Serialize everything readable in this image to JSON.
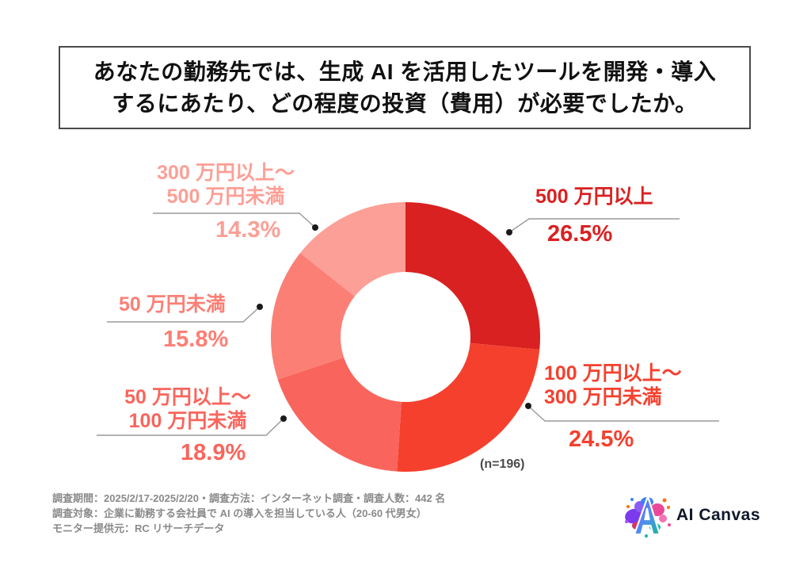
{
  "title": {
    "line1": "あなたの勤務先では、生成 AI を活用したツールを開発・導入",
    "line2": "するにあたり、どの程度の投資（費用）が必要でしたか。"
  },
  "chart_data": {
    "type": "pie",
    "subtype": "donut",
    "title": "生成AIツール開発・導入に必要だった投資（費用）",
    "sample_note": "(n=196)",
    "start_angle_deg": 0,
    "direction": "clockwise",
    "inner_radius_ratio": 0.48,
    "legend_position": "callout-labels",
    "segments": [
      {
        "label": "500 万円以上",
        "label_lines": [
          "500 万円以上"
        ],
        "value": 26.5,
        "percent_display": "26.5%",
        "color": "#D92121"
      },
      {
        "label": "100 万円以上〜300 万円未満",
        "label_lines": [
          "100 万円以上〜",
          "300 万円未満"
        ],
        "value": 24.5,
        "percent_display": "24.5%",
        "color": "#F5402E"
      },
      {
        "label": "50 万円以上〜100 万円未満",
        "label_lines": [
          "50 万円以上〜",
          "100 万円未満"
        ],
        "value": 18.9,
        "percent_display": "18.9%",
        "color": "#F9655C"
      },
      {
        "label": "50 万円未満",
        "label_lines": [
          "50 万円未満"
        ],
        "value": 15.8,
        "percent_display": "15.8%",
        "color": "#FC7F75"
      },
      {
        "label": "300 万円以上〜500 万円未満",
        "label_lines": [
          "300 万円以上〜",
          "500 万円未満"
        ],
        "value": 14.3,
        "percent_display": "14.3%",
        "color": "#FC9F96"
      }
    ]
  },
  "footer": {
    "lines": [
      "調査期間：2025/2/17-2025/2/20・調査方法：インターネット調査・調査人数：442 名",
      "調査対象：企業に勤務する会社員で AI の導入を担当している人（20-60 代男女）",
      "モニター提供元：RC リサーチデータ"
    ]
  },
  "logo": {
    "brand": "AI Canvas"
  },
  "colors": {
    "leader_line": "#9a9a9a",
    "leader_dot": "#1a1a1a",
    "title_border": "#4a4a4a",
    "footnote_text": "#8a8a8a"
  }
}
